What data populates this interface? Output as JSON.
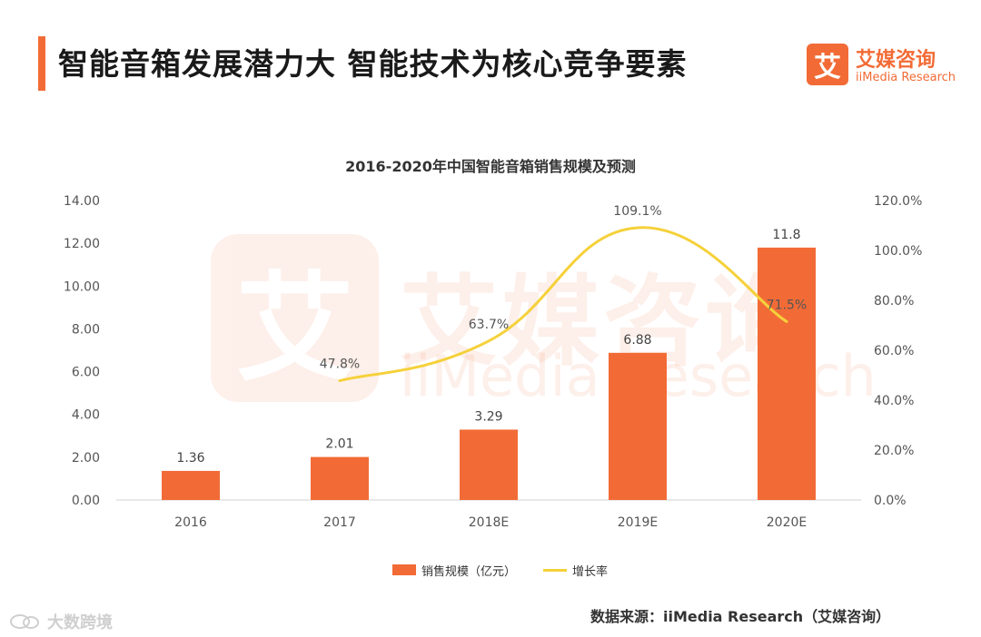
{
  "page": {
    "title": "智能音箱发展潜力大  智能技术为核心竞争要素",
    "accent_color": "#f26b36"
  },
  "brand": {
    "logo_char": "艾",
    "name_cn": "艾媒咨询",
    "name_en": "iiMedia Research",
    "color": "#f26b36"
  },
  "watermark": {
    "logo_char": "艾",
    "cn": "艾媒咨询",
    "en": "iiMedia Research",
    "color": "#f26b36"
  },
  "chart_data": {
    "type": "bar",
    "title": "2016-2020年中国智能音箱销售规模及预测",
    "categories": [
      "2016",
      "2017",
      "2018E",
      "2019E",
      "2020E"
    ],
    "series": [
      {
        "name": "销售规模（亿元）",
        "kind": "bar",
        "axis": "left",
        "color": "#f26b36",
        "values": [
          1.36,
          2.01,
          3.29,
          6.88,
          11.8
        ],
        "labels": [
          "1.36",
          "2.01",
          "3.29",
          "6.88",
          "11.8"
        ]
      },
      {
        "name": "增长率",
        "kind": "line",
        "axis": "right",
        "color": "#f5d13a",
        "values": [
          null,
          47.8,
          63.7,
          109.1,
          71.5
        ],
        "labels": [
          "",
          "47.8%",
          "63.7%",
          "109.1%",
          "71.5%"
        ]
      }
    ],
    "y_left": {
      "min": 0,
      "max": 14,
      "step": 2,
      "ticks": [
        "0.00",
        "2.00",
        "4.00",
        "6.00",
        "8.00",
        "10.00",
        "12.00",
        "14.00"
      ]
    },
    "y_right": {
      "min": 0,
      "max": 120,
      "step": 20,
      "ticks": [
        "0.0%",
        "20.0%",
        "40.0%",
        "60.0%",
        "80.0%",
        "100.0%",
        "120.0%"
      ]
    },
    "grid": false,
    "legend_position": "bottom"
  },
  "legend": {
    "bar_label": "销售规模（亿元）",
    "line_label": "增长率"
  },
  "source": "数据来源：iiMedia Research（艾媒咨询）",
  "social_watermark": "大数跨境"
}
